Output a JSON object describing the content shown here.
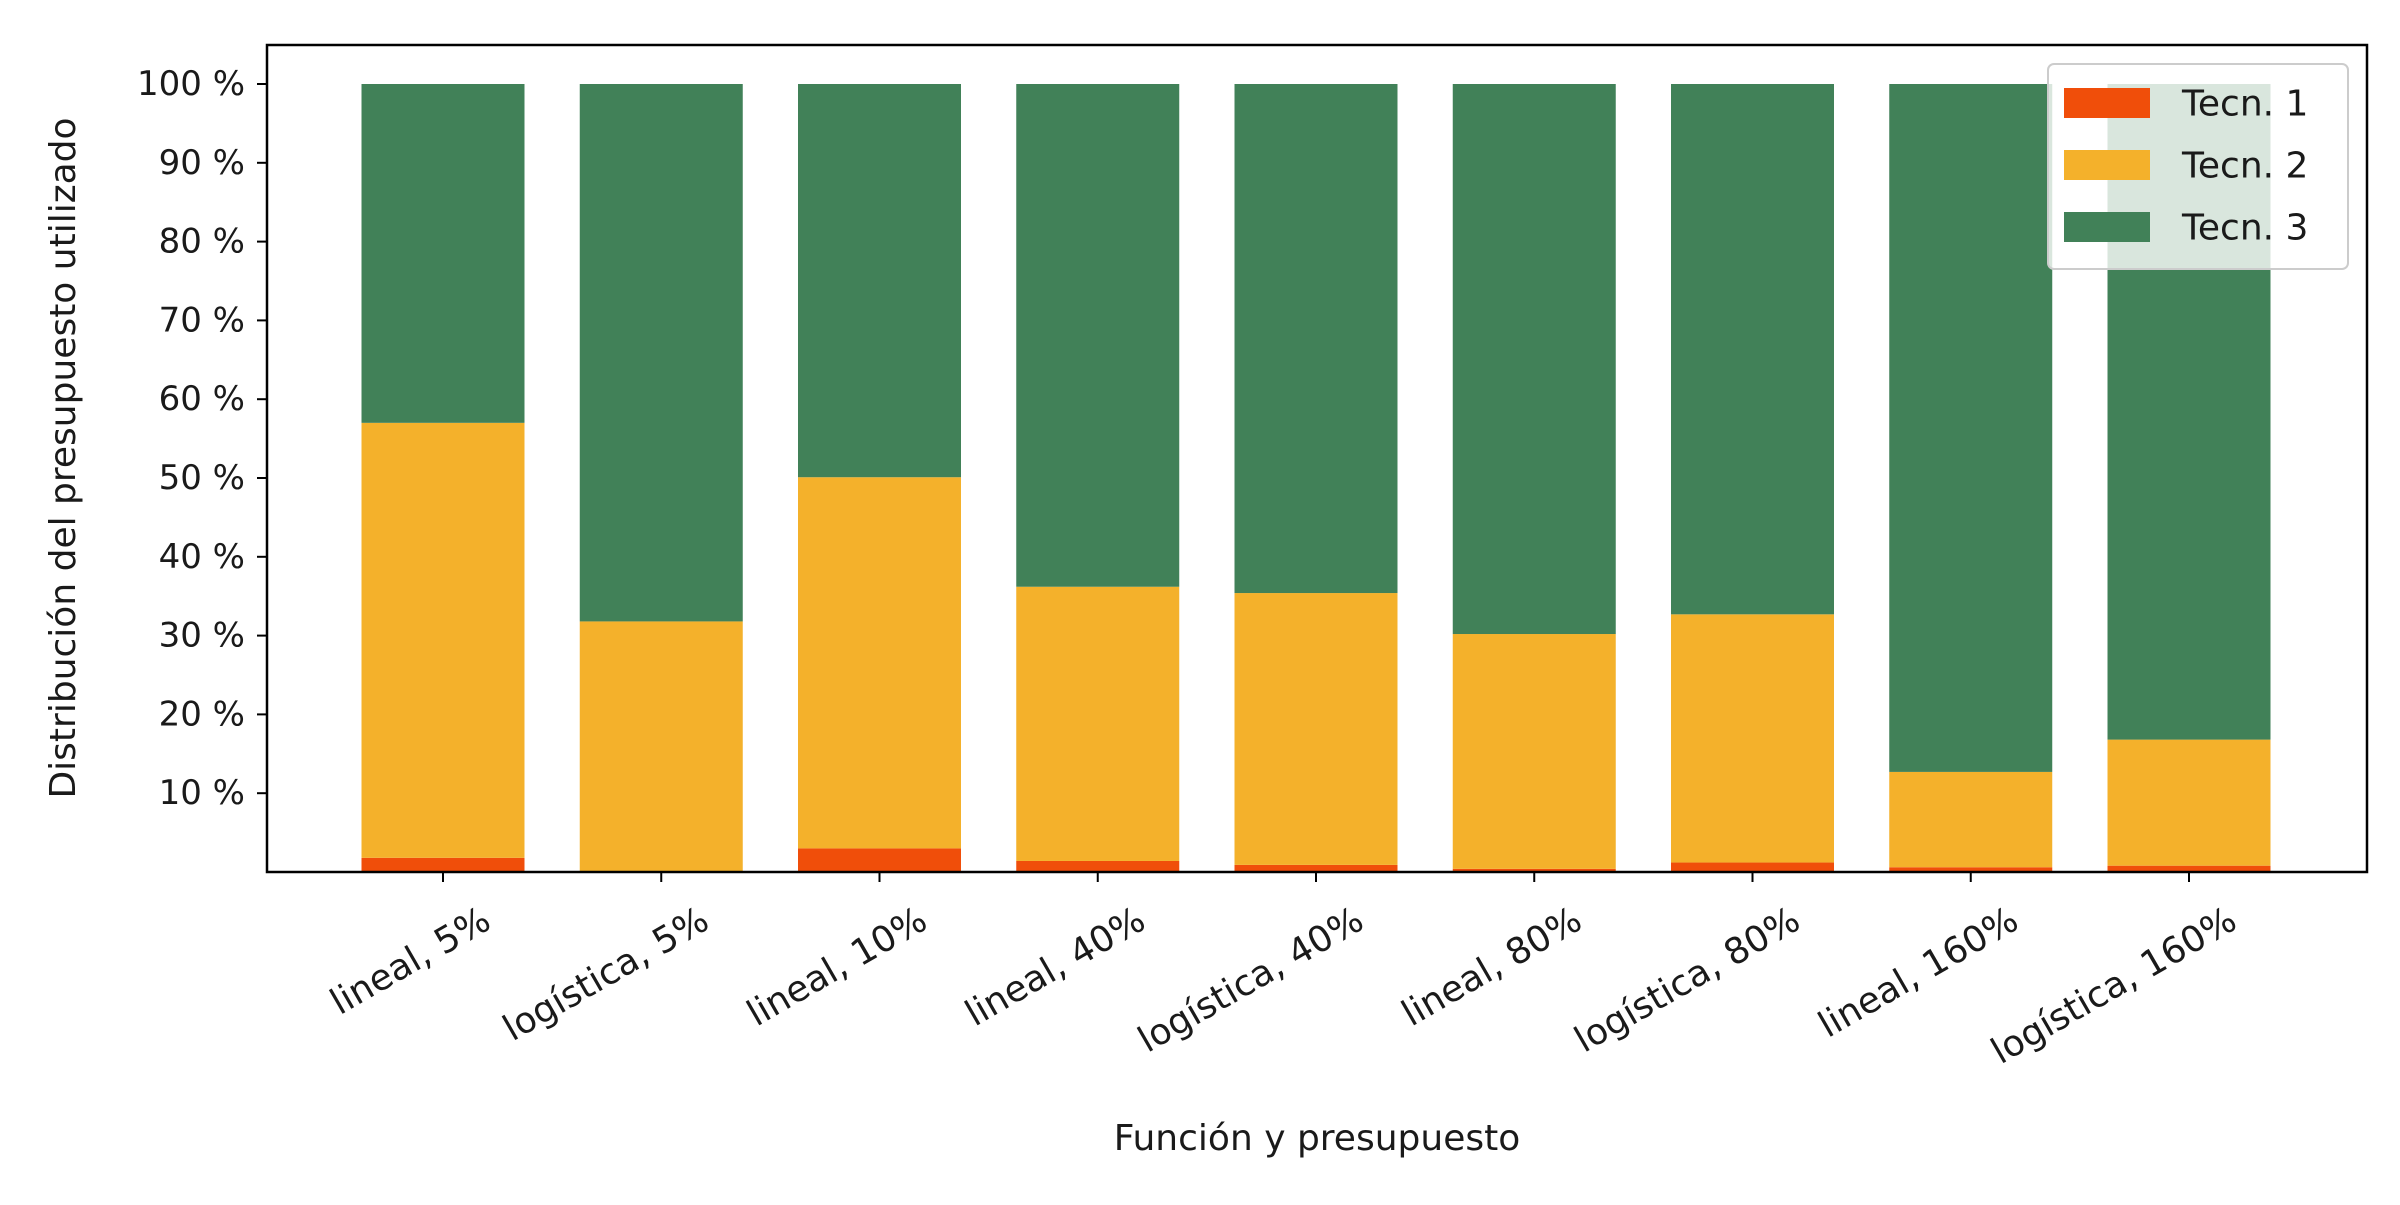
{
  "chart_data": {
    "type": "bar",
    "stacked": true,
    "categories": [
      "lineal, 5%",
      "logística, 5%",
      "lineal, 10%",
      "lineal, 40%",
      "logística, 40%",
      "lineal, 80%",
      "logística, 80%",
      "lineal, 160%",
      "logística, 160%"
    ],
    "series": [
      {
        "name": "Tecn. 1",
        "color": "#f04e0a",
        "values": [
          1.8,
          0.0,
          3.0,
          1.4,
          0.9,
          0.4,
          1.2,
          0.6,
          0.8
        ]
      },
      {
        "name": "Tecn. 2",
        "color": "#f4b12b",
        "values": [
          55.2,
          31.8,
          47.1,
          34.8,
          34.5,
          29.8,
          31.5,
          12.1,
          16.0
        ]
      },
      {
        "name": "Tecn. 3",
        "color": "#418158",
        "values": [
          43.0,
          68.2,
          49.9,
          63.8,
          64.6,
          69.8,
          67.3,
          87.3,
          83.2
        ]
      }
    ],
    "xlabel": "Función y presupuesto",
    "ylabel": "Distribución del presupuesto utilizado",
    "ylim": [
      0,
      100
    ],
    "yticks": [
      "10 %",
      "20 %",
      "30 %",
      "40 %",
      "50 %",
      "60 %",
      "70 %",
      "80 %",
      "90 %",
      "100 %"
    ],
    "ytick_values": [
      10,
      20,
      30,
      40,
      50,
      60,
      70,
      80,
      90,
      100
    ],
    "legend_position": "top-right"
  }
}
